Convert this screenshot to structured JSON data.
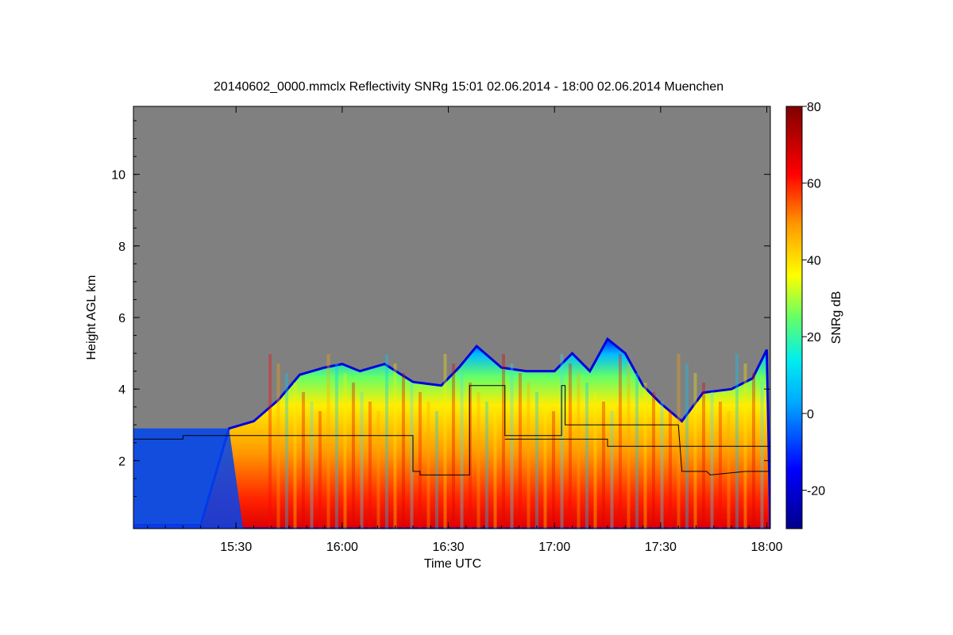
{
  "chart_data": {
    "type": "heatmap",
    "title": "20140602_0000.mmclx Reflectivity SNRg   15:01 02.06.2014 - 18:00 02.06.2014 Muenchen",
    "xlabel": "Time UTC",
    "ylabel": "Height AGL km",
    "x_range": [
      "15:01",
      "18:01"
    ],
    "x_ticks": [
      "15:30",
      "16:00",
      "16:30",
      "17:00",
      "17:30",
      "18:00"
    ],
    "ylim": [
      0.1,
      11.9
    ],
    "y_ticks": [
      2,
      4,
      6,
      8,
      10
    ],
    "colorbar": {
      "label": "SNRg dB",
      "range": [
        -30,
        80
      ],
      "ticks": [
        -20,
        0,
        20,
        40,
        60,
        80
      ],
      "colormap": "jet"
    },
    "background_color": "#808080",
    "cloud_top_km": [
      [
        "15:01",
        0.2
      ],
      [
        "15:10",
        0.2
      ],
      [
        "15:20",
        0.2
      ],
      [
        "15:28",
        2.9
      ],
      [
        "15:35",
        3.1
      ],
      [
        "15:42",
        3.7
      ],
      [
        "15:48",
        4.4
      ],
      [
        "15:55",
        4.6
      ],
      [
        "16:00",
        4.7
      ],
      [
        "16:05",
        4.5
      ],
      [
        "16:12",
        4.7
      ],
      [
        "16:20",
        4.2
      ],
      [
        "16:28",
        4.1
      ],
      [
        "16:33",
        4.6
      ],
      [
        "16:38",
        5.2
      ],
      [
        "16:45",
        4.6
      ],
      [
        "16:52",
        4.5
      ],
      [
        "17:00",
        4.5
      ],
      [
        "17:05",
        5.0
      ],
      [
        "17:10",
        4.5
      ],
      [
        "17:15",
        5.4
      ],
      [
        "17:20",
        5.0
      ],
      [
        "17:25",
        4.1
      ],
      [
        "17:30",
        3.6
      ],
      [
        "17:36",
        3.1
      ],
      [
        "17:42",
        3.9
      ],
      [
        "17:50",
        4.0
      ],
      [
        "17:56",
        4.3
      ],
      [
        "18:00",
        5.1
      ]
    ],
    "overlay_line": {
      "color": "#000000",
      "points": [
        [
          "15:01",
          2.6
        ],
        [
          "15:15",
          2.6
        ],
        [
          "15:15",
          2.7
        ],
        [
          "16:20",
          2.7
        ],
        [
          "16:20",
          1.7
        ],
        [
          "16:22",
          1.7
        ],
        [
          "16:22",
          1.6
        ],
        [
          "16:36",
          1.6
        ],
        [
          "16:36",
          4.1
        ],
        [
          "16:46",
          4.1
        ],
        [
          "16:46",
          2.7
        ],
        [
          "17:02",
          2.7
        ],
        [
          "17:02",
          4.1
        ],
        [
          "17:03",
          4.1
        ],
        [
          "17:03",
          3.0
        ],
        [
          "17:35",
          3.0
        ],
        [
          "17:36",
          1.7
        ],
        [
          "17:43",
          1.7
        ],
        [
          "17:44",
          1.6
        ],
        [
          "17:54",
          1.7
        ],
        [
          "18:01",
          1.7
        ]
      ],
      "second_segment": [
        [
          "16:46",
          2.6
        ],
        [
          "17:15",
          2.6
        ],
        [
          "17:15",
          2.4
        ],
        [
          "18:01",
          2.4
        ]
      ]
    }
  }
}
